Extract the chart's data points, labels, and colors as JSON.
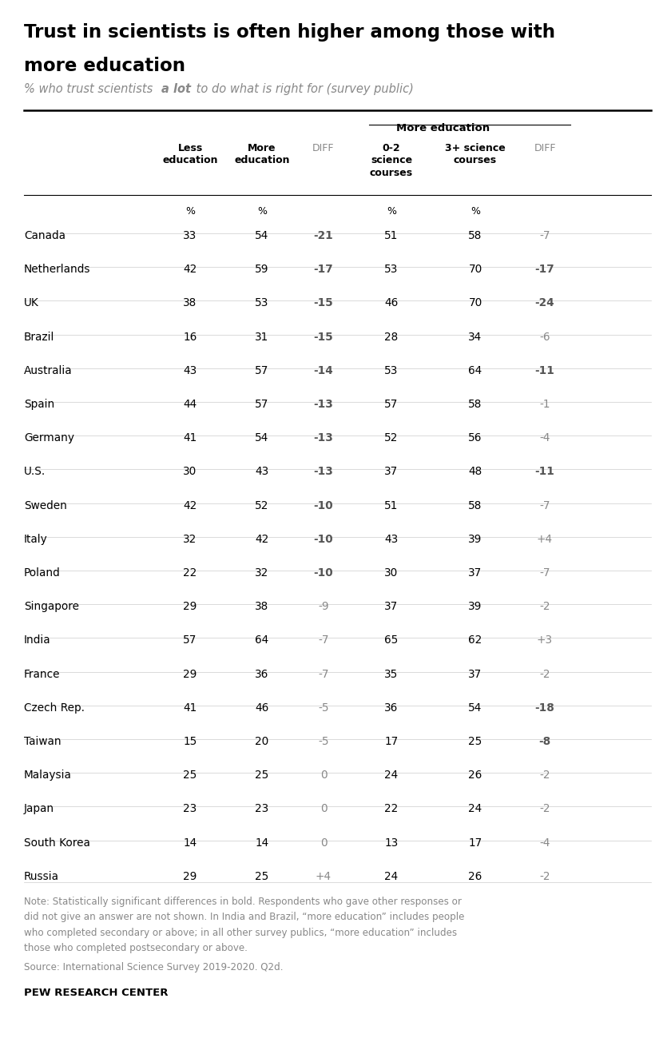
{
  "title": "Trust in scientists is often higher among those with\nmore education",
  "group_header": "More education",
  "countries": [
    "Canada",
    "Netherlands",
    "UK",
    "Brazil",
    "Australia",
    "Spain",
    "Germany",
    "U.S.",
    "Sweden",
    "Italy",
    "Poland",
    "Singapore",
    "India",
    "France",
    "Czech Rep.",
    "Taiwan",
    "Malaysia",
    "Japan",
    "South Korea",
    "Russia"
  ],
  "less_ed": [
    33,
    42,
    38,
    16,
    43,
    44,
    41,
    30,
    42,
    32,
    22,
    29,
    57,
    29,
    41,
    15,
    25,
    23,
    14,
    29
  ],
  "more_ed": [
    54,
    59,
    53,
    31,
    57,
    57,
    54,
    43,
    52,
    42,
    32,
    38,
    64,
    36,
    46,
    20,
    25,
    23,
    14,
    25
  ],
  "diff1": [
    -21,
    -17,
    -15,
    -15,
    -14,
    -13,
    -13,
    -13,
    -10,
    -10,
    -10,
    -9,
    -7,
    -7,
    -5,
    -5,
    0,
    0,
    0,
    4
  ],
  "diff1_bold": [
    true,
    true,
    true,
    true,
    true,
    true,
    true,
    true,
    true,
    true,
    true,
    false,
    false,
    false,
    false,
    false,
    false,
    false,
    false,
    false
  ],
  "sci_02": [
    51,
    53,
    46,
    28,
    53,
    57,
    52,
    37,
    51,
    43,
    30,
    37,
    65,
    35,
    36,
    17,
    24,
    22,
    13,
    24
  ],
  "sci_3plus": [
    58,
    70,
    70,
    34,
    64,
    58,
    56,
    48,
    58,
    39,
    37,
    39,
    62,
    37,
    54,
    25,
    26,
    24,
    17,
    26
  ],
  "diff2": [
    -7,
    -17,
    -24,
    -6,
    -11,
    -1,
    -4,
    -11,
    -7,
    4,
    -7,
    -2,
    3,
    -2,
    -18,
    -8,
    -2,
    -2,
    -4,
    -2
  ],
  "diff2_bold": [
    false,
    true,
    true,
    false,
    true,
    false,
    false,
    true,
    false,
    false,
    false,
    false,
    false,
    false,
    true,
    true,
    false,
    false,
    false,
    false
  ],
  "source": "Source: International Science Survey 2019-2020. Q2d.",
  "footer": "PEW RESEARCH CENTER",
  "bg_color": "#ffffff",
  "text_color": "#000000",
  "gray_color": "#888888",
  "light_gray": "#bbbbbb",
  "line_color": "#cccccc"
}
